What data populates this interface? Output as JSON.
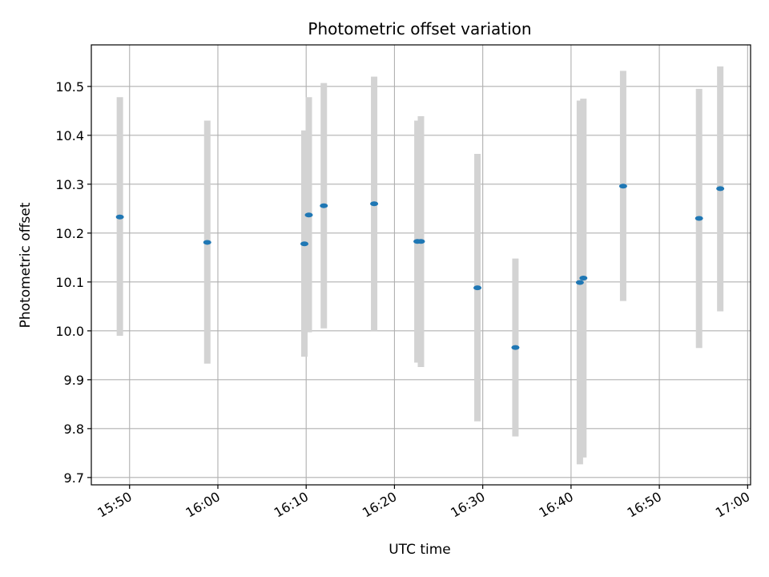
{
  "chart_data": {
    "type": "scatter",
    "title": "Photometric offset variation",
    "xlabel": "UTC time",
    "ylabel": "Photometric offset",
    "x_ticks": [
      "15:50",
      "16:00",
      "16:10",
      "16:20",
      "16:30",
      "16:40",
      "16:50",
      "17:00"
    ],
    "y_ticks": [
      "9.7",
      "9.8",
      "9.9",
      "10.0",
      "10.1",
      "10.2",
      "10.3",
      "10.4",
      "10.5"
    ],
    "xlim": [
      "15:45:40",
      "17:00:20"
    ],
    "ylim": [
      9.685,
      10.585
    ],
    "grid": true,
    "colors": {
      "point": "#1f77b4",
      "errorbar": "#d3d3d3",
      "grid": "#b0b0b0"
    },
    "points": [
      {
        "x": "15:48:54",
        "y": 10.233,
        "ylow": 9.99,
        "yhigh": 10.478
      },
      {
        "x": "15:58:48",
        "y": 10.181,
        "ylow": 9.933,
        "yhigh": 10.43
      },
      {
        "x": "16:09:48",
        "y": 10.178,
        "ylow": 9.947,
        "yhigh": 10.41
      },
      {
        "x": "16:10:18",
        "y": 10.237,
        "ylow": 9.997,
        "yhigh": 10.478
      },
      {
        "x": "16:12:00",
        "y": 10.256,
        "ylow": 10.005,
        "yhigh": 10.507
      },
      {
        "x": "16:17:42",
        "y": 10.26,
        "ylow": 10.0,
        "yhigh": 10.52
      },
      {
        "x": "16:22:36",
        "y": 10.183,
        "ylow": 9.935,
        "yhigh": 10.43
      },
      {
        "x": "16:23:00",
        "y": 10.183,
        "ylow": 9.926,
        "yhigh": 10.439
      },
      {
        "x": "16:29:24",
        "y": 10.088,
        "ylow": 9.815,
        "yhigh": 10.362
      },
      {
        "x": "16:33:42",
        "y": 9.966,
        "ylow": 9.784,
        "yhigh": 10.148
      },
      {
        "x": "16:41:00",
        "y": 10.099,
        "ylow": 9.727,
        "yhigh": 10.471
      },
      {
        "x": "16:41:24",
        "y": 10.108,
        "ylow": 9.741,
        "yhigh": 10.475
      },
      {
        "x": "16:45:54",
        "y": 10.296,
        "ylow": 10.061,
        "yhigh": 10.532
      },
      {
        "x": "16:54:30",
        "y": 10.23,
        "ylow": 9.965,
        "yhigh": 10.495
      },
      {
        "x": "16:56:54",
        "y": 10.291,
        "ylow": 10.04,
        "yhigh": 10.541
      }
    ]
  }
}
